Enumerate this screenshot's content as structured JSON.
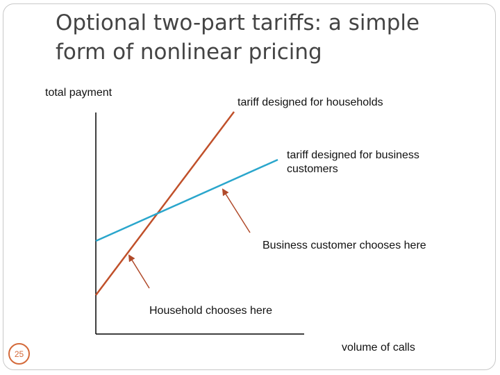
{
  "slide": {
    "title_line1": "Optional two-part tariffs: a simple",
    "title_line2": "form of nonlinear pricing",
    "page_number": "25"
  },
  "diagram": {
    "y_axis_label": "total payment",
    "x_axis_label": "volume of calls",
    "household_tariff_label": "tariff designed for households",
    "business_tariff_label_line1": "tariff designed for business",
    "business_tariff_label_line2": "customers",
    "business_choice_label": "Business customer chooses here",
    "household_choice_label": "Household chooses here",
    "colors": {
      "household_line": "#c0502a",
      "business_line": "#2aa6cc",
      "axis": "#000000",
      "arrow": "#b04a2a",
      "badge": "#d46a3a"
    }
  }
}
